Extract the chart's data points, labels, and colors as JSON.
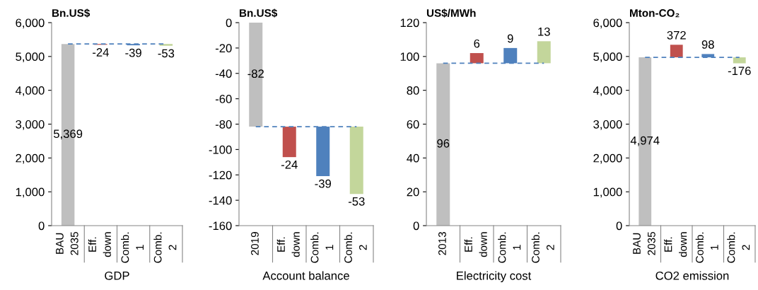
{
  "chart_data": [
    {
      "type": "bar",
      "title": "Bn.US$",
      "xlabel": "GDP",
      "categories": [
        "BAU\n2035",
        "Eff.\ndown",
        "Comb.\n1",
        "Comb.\n2"
      ],
      "values": [
        5369,
        -24,
        -39,
        -53
      ],
      "base": [
        0,
        5369,
        5369,
        5369
      ],
      "colors": [
        "#bfbfbf",
        "#c0504d",
        "#4f81bd",
        "#c3d69b"
      ],
      "value_labels": [
        "5,369",
        "-24",
        "-39",
        "-53"
      ],
      "ylim": [
        0,
        6000
      ],
      "yticks": [
        0,
        {
          "value": 1000,
          "label": "1,000"
        },
        {
          "value": 2000,
          "label": "2,000"
        },
        {
          "value": 3000,
          "label": "3,000"
        },
        {
          "value": 4000,
          "label": "4,000"
        },
        {
          "value": 5000,
          "label": "5,000"
        },
        {
          "value": 6000,
          "label": "6,000"
        }
      ],
      "ref_lines": [
        {
          "axis": "y",
          "value": 5369,
          "color": "#4f81bd",
          "line_style": "dashed"
        }
      ],
      "grid": false,
      "legend": false
    },
    {
      "type": "bar",
      "title": "Bn.US$",
      "xlabel": "Account balance",
      "categories": [
        "2019",
        "Eff.\ndown",
        "Comb.\n1",
        "Comb.\n2"
      ],
      "values": [
        -82,
        -24,
        -39,
        -53
      ],
      "base": [
        0,
        -82,
        -82,
        -82
      ],
      "colors": [
        "#bfbfbf",
        "#c0504d",
        "#4f81bd",
        "#c3d69b"
      ],
      "value_labels": [
        "-82",
        "-24",
        "-39",
        "-53"
      ],
      "ylim": [
        -160,
        0
      ],
      "yticks": [
        -160,
        -140,
        -120,
        -100,
        -80,
        -60,
        -40,
        -20,
        0
      ],
      "ref_lines": [
        {
          "axis": "y",
          "value": -82,
          "color": "#4f81bd",
          "line_style": "dashed"
        }
      ],
      "grid": false,
      "legend": false
    },
    {
      "type": "bar",
      "title": "US$/MWh",
      "xlabel": "Electricity cost",
      "categories": [
        "2013",
        "Eff.\ndown",
        "Comb.\n1",
        "Comb.\n2"
      ],
      "values": [
        96,
        6,
        9,
        13
      ],
      "base": [
        0,
        96,
        96,
        96
      ],
      "colors": [
        "#bfbfbf",
        "#c0504d",
        "#4f81bd",
        "#c3d69b"
      ],
      "value_labels": [
        "96",
        "6",
        "9",
        "13"
      ],
      "ylim": [
        0,
        120
      ],
      "yticks": [
        0,
        20,
        40,
        60,
        80,
        100,
        120
      ],
      "ref_lines": [
        {
          "axis": "y",
          "value": 96,
          "color": "#4f81bd",
          "line_style": "dashed"
        }
      ],
      "grid": false,
      "legend": false
    },
    {
      "type": "bar",
      "title": "Mton-CO₂",
      "xlabel": "CO2 emission",
      "categories": [
        "BAU\n2035",
        "Eff.\ndown",
        "Comb.\n1",
        "Comb.\n2"
      ],
      "values": [
        4974,
        372,
        98,
        -176
      ],
      "base": [
        0,
        4974,
        4974,
        4974
      ],
      "colors": [
        "#bfbfbf",
        "#c0504d",
        "#4f81bd",
        "#c3d69b"
      ],
      "value_labels": [
        "4,974",
        "372",
        "98",
        "-176"
      ],
      "ylim": [
        0,
        6000
      ],
      "yticks": [
        0,
        {
          "value": 1000,
          "label": "1,000"
        },
        {
          "value": 2000,
          "label": "2,000"
        },
        {
          "value": 3000,
          "label": "3,000"
        },
        {
          "value": 4000,
          "label": "4,000"
        },
        {
          "value": 5000,
          "label": "5,000"
        },
        {
          "value": 6000,
          "label": "6,000"
        }
      ],
      "ref_lines": [
        {
          "axis": "y",
          "value": 4974,
          "color": "#4f81bd",
          "line_style": "dashed"
        }
      ],
      "grid": false,
      "legend": false
    }
  ]
}
